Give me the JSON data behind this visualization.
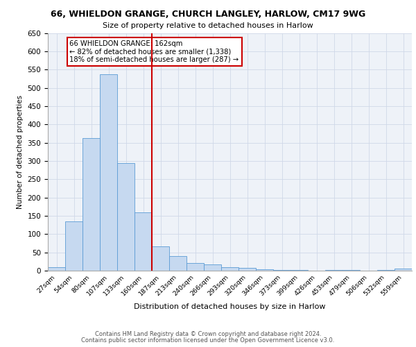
{
  "title_line1": "66, WHIELDON GRANGE, CHURCH LANGLEY, HARLOW, CM17 9WG",
  "title_line2": "Size of property relative to detached houses in Harlow",
  "xlabel": "Distribution of detached houses by size in Harlow",
  "ylabel": "Number of detached properties",
  "bar_labels": [
    "27sqm",
    "54sqm",
    "80sqm",
    "107sqm",
    "133sqm",
    "160sqm",
    "187sqm",
    "213sqm",
    "240sqm",
    "266sqm",
    "293sqm",
    "320sqm",
    "346sqm",
    "373sqm",
    "399sqm",
    "426sqm",
    "453sqm",
    "479sqm",
    "506sqm",
    "532sqm",
    "559sqm"
  ],
  "bar_heights": [
    10,
    135,
    363,
    537,
    295,
    160,
    67,
    40,
    20,
    17,
    10,
    8,
    3,
    2,
    1,
    0,
    2,
    1,
    0,
    1,
    5
  ],
  "bar_color": "#c6d9f0",
  "bar_edge_color": "#5b9bd5",
  "vline_x": 5.5,
  "vline_color": "#cc0000",
  "annotation_text": "66 WHIELDON GRANGE: 162sqm\n← 82% of detached houses are smaller (1,338)\n18% of semi-detached houses are larger (287) →",
  "annotation_box_color": "#ffffff",
  "annotation_box_edge": "#cc0000",
  "ylim": [
    0,
    650
  ],
  "yticks": [
    0,
    50,
    100,
    150,
    200,
    250,
    300,
    350,
    400,
    450,
    500,
    550,
    600,
    650
  ],
  "grid_color": "#d0d8e8",
  "bg_color": "#eef2f8",
  "footer_line1": "Contains HM Land Registry data © Crown copyright and database right 2024.",
  "footer_line2": "Contains public sector information licensed under the Open Government Licence v3.0."
}
